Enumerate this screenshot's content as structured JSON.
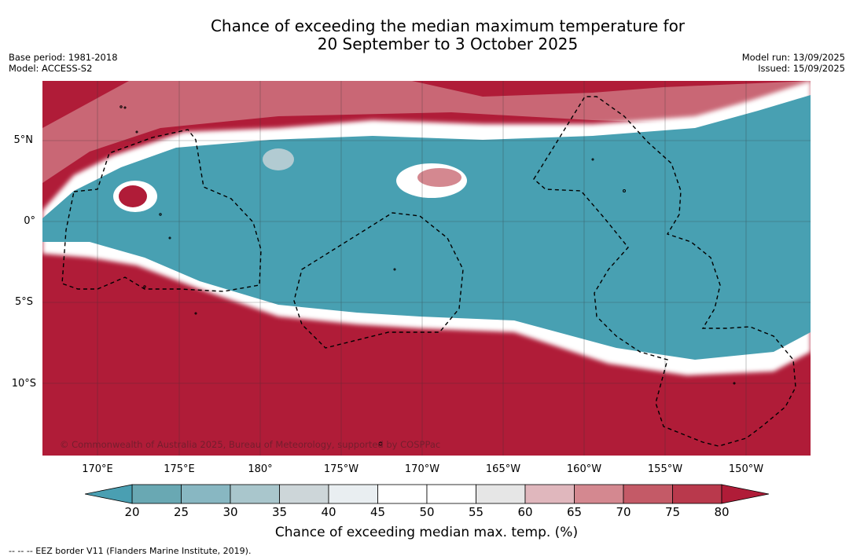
{
  "title": {
    "line1": "Chance of exceeding the median maximum temperature for",
    "line2": "20 September to 3 October 2025"
  },
  "meta": {
    "base_period": "Base period: 1981-2018",
    "model": "Model: ACCESS-S2",
    "model_run": "Model run: 13/09/2025",
    "issued": "Issued: 15/09/2025"
  },
  "axes": {
    "lat_labels": [
      "5°N",
      "0°",
      "5°S",
      "10°S"
    ],
    "lon_labels": [
      "170°E",
      "175°E",
      "180°",
      "175°W",
      "170°W",
      "165°W",
      "160°W",
      "155°W",
      "150°W"
    ]
  },
  "copyright": "© Commonwealth of Australia 2025, Bureau of Meteorology, supported by COSPPac",
  "colorbar": {
    "ticks": [
      "20",
      "25",
      "30",
      "35",
      "40",
      "45",
      "50",
      "55",
      "60",
      "65",
      "70",
      "75",
      "80"
    ],
    "colors": [
      "#69a8b3",
      "#88b7c2",
      "#a9c6cc",
      "#cdd6d9",
      "#e9eef1",
      "#ffffff",
      "#ffffff",
      "#e6e6e6",
      "#e0b7bd",
      "#d48890",
      "#c45a67",
      "#b9394c"
    ],
    "low_extend_color": "#4a9fb2",
    "high_extend_color": "#b01c38",
    "title": "Chance of exceeding median max. temp. (%)"
  },
  "footnote": "--  --  -- EEZ border V11 (Flanders Marine Institute, 2019).",
  "map_colors": {
    "hot": "#b01c38",
    "cool": "#48a0b2",
    "mid": "#ffffff"
  }
}
